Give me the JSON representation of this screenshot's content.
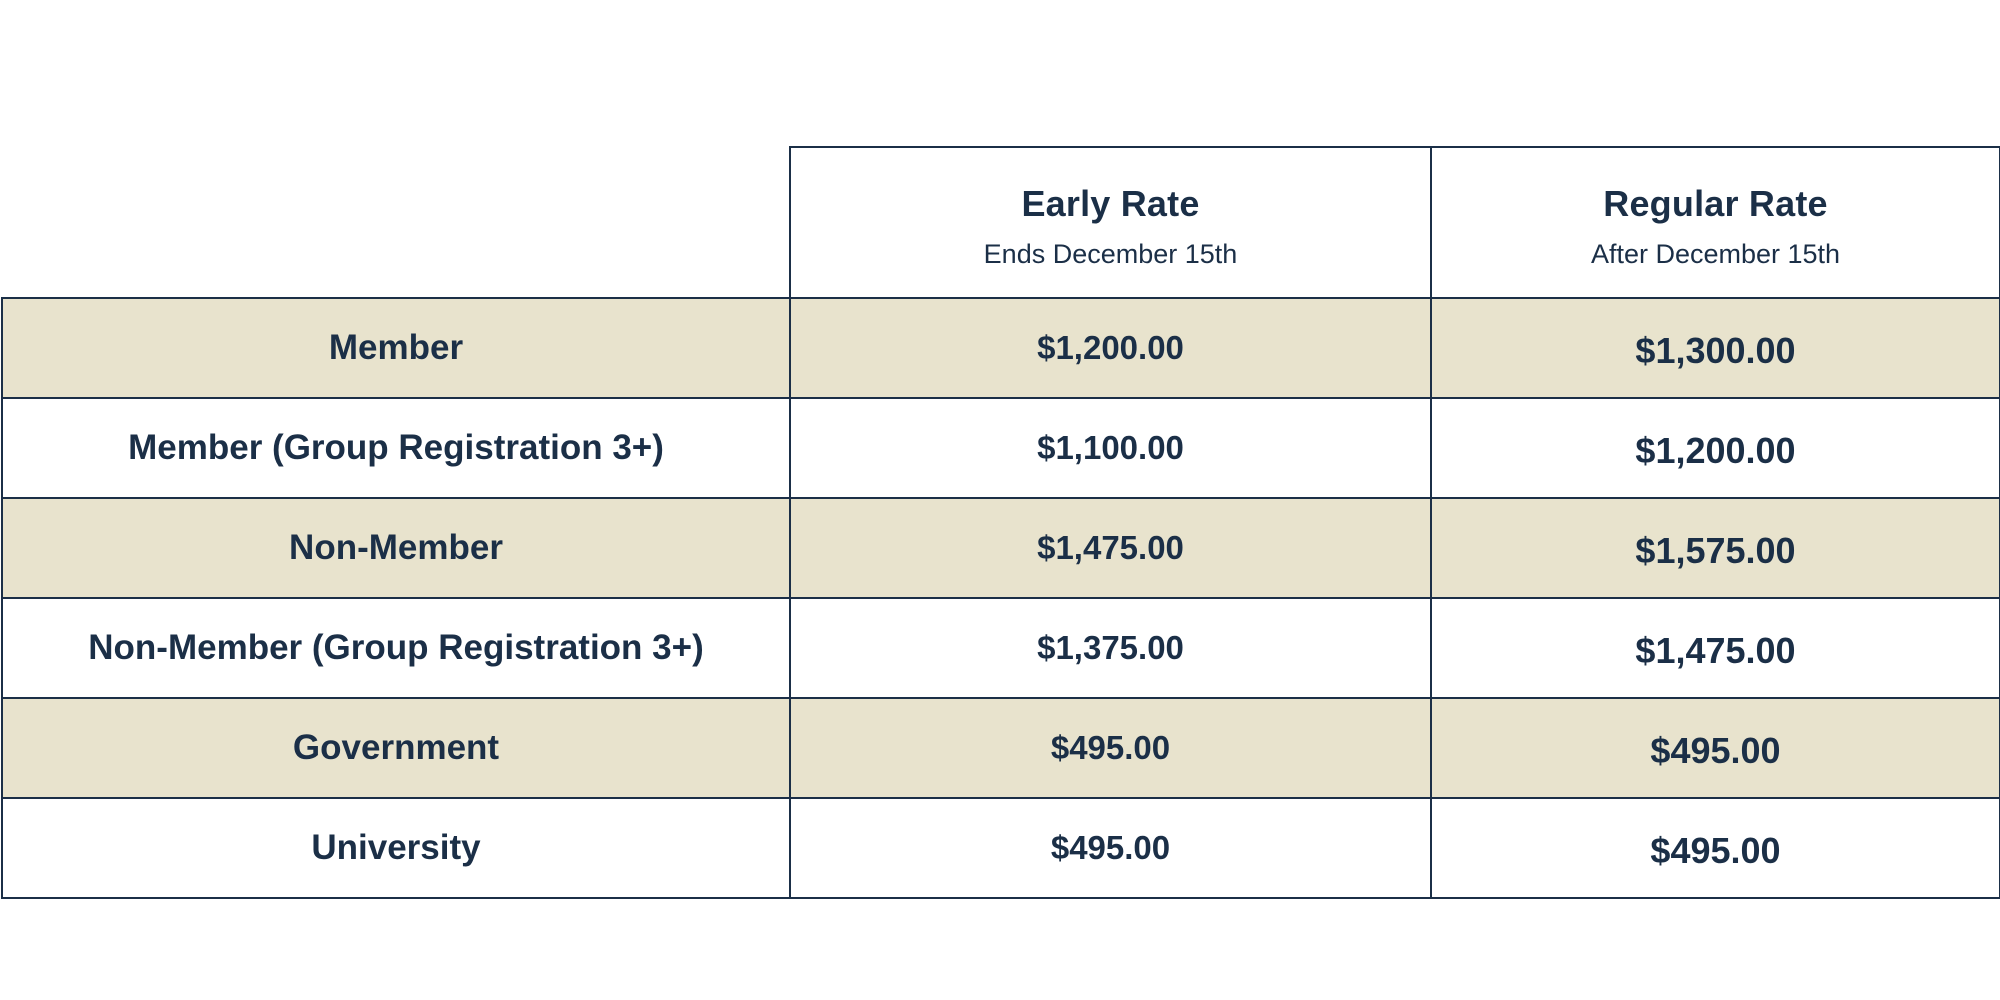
{
  "table": {
    "headers": {
      "early": {
        "title": "Early Rate",
        "subtitle": "Ends December 15th"
      },
      "regular": {
        "title": "Regular Rate",
        "subtitle": "After December 15th"
      }
    },
    "rows": [
      {
        "category": "Member",
        "early": "$1,200.00",
        "regular": "$1,300.00"
      },
      {
        "category": "Member (Group Registration 3+)",
        "early": "$1,100.00",
        "regular": "$1,200.00"
      },
      {
        "category": "Non-Member",
        "early": "$1,475.00",
        "regular": "$1,575.00"
      },
      {
        "category": "Non-Member (Group Registration 3+)",
        "early": "$1,375.00",
        "regular": "$1,475.00"
      },
      {
        "category": "Government",
        "early": "$495.00",
        "regular": "$495.00"
      },
      {
        "category": "University",
        "early": "$495.00",
        "regular": "$495.00"
      }
    ]
  },
  "colors": {
    "text": "#1b2f47",
    "border": "#1b2f47",
    "shaded_row": "#e8e3cd",
    "plain_row": "#ffffff"
  }
}
